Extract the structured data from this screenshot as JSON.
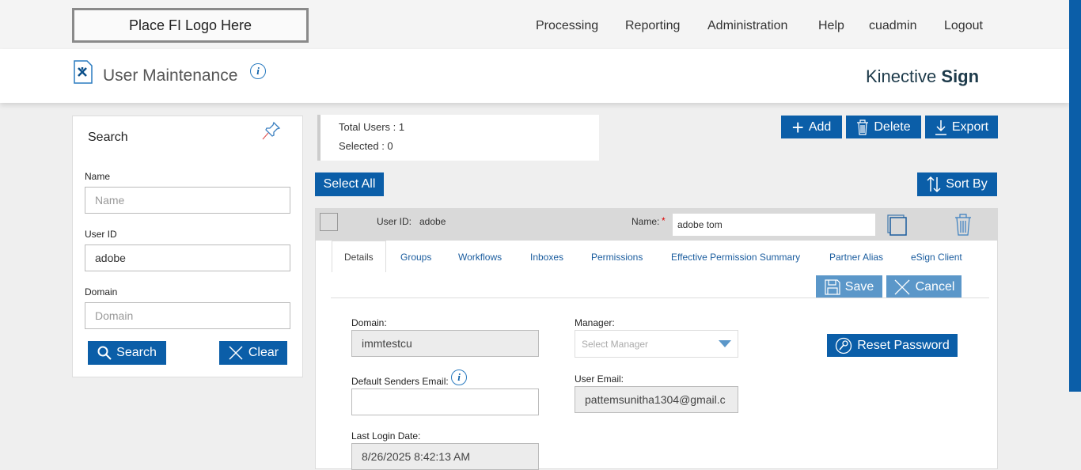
{
  "logo": "Place FI Logo Here",
  "nav": [
    "Processing",
    "Reporting",
    "Administration",
    "Help",
    "cuadmin",
    "Logout"
  ],
  "page_title": "User Maintenance",
  "brand": {
    "light": "Kinective ",
    "bold": "Sign"
  },
  "search": {
    "title": "Search",
    "name_label": "Name",
    "name_placeholder": "Name",
    "userid_label": "User ID",
    "userid_value": "adobe",
    "domain_label": "Domain",
    "domain_placeholder": "Domain",
    "search_btn": "Search",
    "clear_btn": "Clear"
  },
  "stats": {
    "total": "Total Users : 1",
    "selected": "Selected : 0"
  },
  "toolbar": {
    "add": "Add",
    "delete": "Delete",
    "export": "Export",
    "select_all": "Select All",
    "sort_by": "Sort By"
  },
  "user": {
    "userid_label": "User ID:",
    "userid": "adobe",
    "name_label": "Name:",
    "required": "*",
    "name": "adobe tom"
  },
  "tabs": [
    "Details",
    "Groups",
    "Workflows",
    "Inboxes",
    "Permissions",
    "Effective Permission Summary",
    "Partner Alias",
    "eSign Client"
  ],
  "actions": {
    "save": "Save",
    "cancel": "Cancel",
    "reset": "Reset Password"
  },
  "details": {
    "domain_label": "Domain:",
    "domain": "immtestcu",
    "manager_label": "Manager:",
    "manager_placeholder": "Select Manager",
    "dse_label": "Default Senders Email:",
    "dse": "",
    "email_label": "User Email:",
    "email": "pattemsunitha1304@gmail.c",
    "last_login_label": "Last Login Date:",
    "last_login": "8/26/2025 8:42:13 AM"
  },
  "colors": {
    "primary": "#0b5ea8",
    "primary_light": "#5b97c9"
  }
}
